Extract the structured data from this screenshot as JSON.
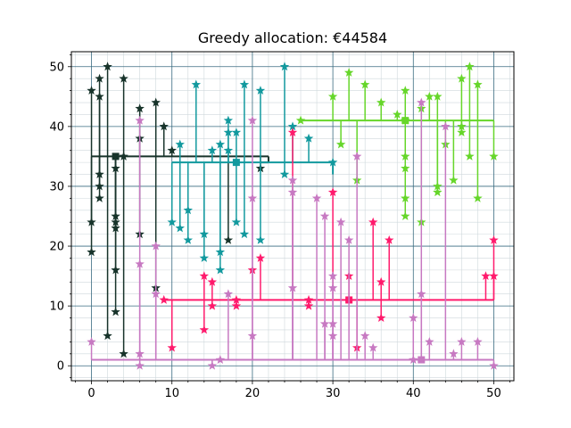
{
  "chart_data": {
    "type": "scatter",
    "title": "Greedy allocation: €44584",
    "xlabel": "",
    "ylabel": "",
    "xlim": [
      -2.5,
      52.5
    ],
    "ylim": [
      -2.5,
      52.5
    ],
    "x_ticks": [
      0,
      10,
      20,
      30,
      40,
      50
    ],
    "y_ticks": [
      0,
      10,
      20,
      30,
      40,
      50
    ],
    "grid": {
      "major_step": 10,
      "minor_step": 2,
      "major_color": "#3a6b80",
      "minor_color": "#cfd8dc"
    },
    "series": [
      {
        "color": "#17332a",
        "hub": [
          3,
          35
        ],
        "trunk": [
          0,
          22
        ],
        "trunk_tail": [
          21,
          34
        ],
        "points": [
          [
            0,
            46
          ],
          [
            0,
            24
          ],
          [
            0,
            19
          ],
          [
            1,
            48
          ],
          [
            1,
            45
          ],
          [
            1,
            32
          ],
          [
            1,
            30
          ],
          [
            1,
            28
          ],
          [
            2,
            50
          ],
          [
            2,
            5
          ],
          [
            3,
            33
          ],
          [
            3,
            25
          ],
          [
            3,
            24
          ],
          [
            3,
            23
          ],
          [
            3,
            16
          ],
          [
            3,
            9
          ],
          [
            4,
            48
          ],
          [
            4,
            35
          ],
          [
            4,
            2
          ],
          [
            6,
            43
          ],
          [
            6,
            38
          ],
          [
            6,
            22
          ],
          [
            8,
            44
          ],
          [
            8,
            13
          ],
          [
            9,
            40
          ],
          [
            10,
            36
          ],
          [
            17,
            21
          ],
          [
            21,
            33
          ]
        ]
      },
      {
        "color": "#12999e",
        "hub": [
          18,
          34
        ],
        "trunk": [
          10,
          30
        ],
        "trunk_tail": [
          30,
          32
        ],
        "points": [
          [
            10,
            24
          ],
          [
            11,
            37
          ],
          [
            11,
            23
          ],
          [
            12,
            26
          ],
          [
            12,
            21
          ],
          [
            13,
            47
          ],
          [
            14,
            22
          ],
          [
            14,
            18
          ],
          [
            15,
            36
          ],
          [
            16,
            37
          ],
          [
            16,
            19
          ],
          [
            16,
            16
          ],
          [
            17,
            41
          ],
          [
            17,
            39
          ],
          [
            17,
            36
          ],
          [
            18,
            39
          ],
          [
            18,
            24
          ],
          [
            19,
            47
          ],
          [
            19,
            22
          ],
          [
            21,
            46
          ],
          [
            21,
            21
          ],
          [
            24,
            50
          ],
          [
            24,
            32
          ],
          [
            25,
            40
          ],
          [
            27,
            38
          ],
          [
            30,
            34
          ]
        ]
      },
      {
        "color": "#66d62a",
        "hub": [
          39,
          41
        ],
        "trunk": [
          26,
          50
        ],
        "trunk_tail": [],
        "points": [
          [
            26,
            41
          ],
          [
            30,
            45
          ],
          [
            31,
            37
          ],
          [
            32,
            49
          ],
          [
            33,
            31
          ],
          [
            34,
            47
          ],
          [
            36,
            44
          ],
          [
            38,
            42
          ],
          [
            39,
            46
          ],
          [
            39,
            41
          ],
          [
            39,
            35
          ],
          [
            39,
            33
          ],
          [
            39,
            28
          ],
          [
            39,
            25
          ],
          [
            41,
            43
          ],
          [
            41,
            24
          ],
          [
            42,
            45
          ],
          [
            43,
            45
          ],
          [
            43,
            30
          ],
          [
            43,
            29
          ],
          [
            44,
            37
          ],
          [
            45,
            31
          ],
          [
            46,
            48
          ],
          [
            46,
            40
          ],
          [
            46,
            39
          ],
          [
            47,
            50
          ],
          [
            47,
            35
          ],
          [
            48,
            47
          ],
          [
            48,
            28
          ],
          [
            50,
            35
          ]
        ]
      },
      {
        "color": "#ff1a6c",
        "hub": [
          32,
          11
        ],
        "trunk": [
          9,
          50
        ],
        "trunk_tail": [],
        "points": [
          [
            9,
            11
          ],
          [
            10,
            3
          ],
          [
            14,
            15
          ],
          [
            14,
            6
          ],
          [
            15,
            14
          ],
          [
            15,
            10
          ],
          [
            18,
            10
          ],
          [
            18,
            11
          ],
          [
            20,
            16
          ],
          [
            21,
            18
          ],
          [
            25,
            39
          ],
          [
            27,
            11
          ],
          [
            27,
            10
          ],
          [
            30,
            29
          ],
          [
            32,
            15
          ],
          [
            33,
            3
          ],
          [
            35,
            24
          ],
          [
            36,
            14
          ],
          [
            36,
            8
          ],
          [
            37,
            21
          ],
          [
            49,
            15
          ],
          [
            50,
            21
          ],
          [
            50,
            15
          ]
        ]
      },
      {
        "color": "#c779c2",
        "hub": [
          41,
          1
        ],
        "trunk": [
          0,
          50
        ],
        "trunk_tail": [],
        "points": [
          [
            0,
            4
          ],
          [
            6,
            41
          ],
          [
            6,
            17
          ],
          [
            6,
            2
          ],
          [
            6,
            0
          ],
          [
            8,
            12
          ],
          [
            8,
            20
          ],
          [
            15,
            0
          ],
          [
            16,
            1
          ],
          [
            17,
            12
          ],
          [
            20,
            41
          ],
          [
            20,
            28
          ],
          [
            20,
            5
          ],
          [
            25,
            31
          ],
          [
            25,
            29
          ],
          [
            25,
            13
          ],
          [
            28,
            28
          ],
          [
            29,
            25
          ],
          [
            29,
            7
          ],
          [
            30,
            15
          ],
          [
            30,
            13
          ],
          [
            30,
            7
          ],
          [
            30,
            5
          ],
          [
            31,
            24
          ],
          [
            32,
            21
          ],
          [
            33,
            35
          ],
          [
            34,
            5
          ],
          [
            35,
            3
          ],
          [
            40,
            8
          ],
          [
            40,
            1
          ],
          [
            41,
            44
          ],
          [
            41,
            12
          ],
          [
            42,
            4
          ],
          [
            44,
            40
          ],
          [
            45,
            2
          ],
          [
            46,
            4
          ],
          [
            48,
            4
          ],
          [
            50,
            0
          ]
        ]
      }
    ]
  }
}
